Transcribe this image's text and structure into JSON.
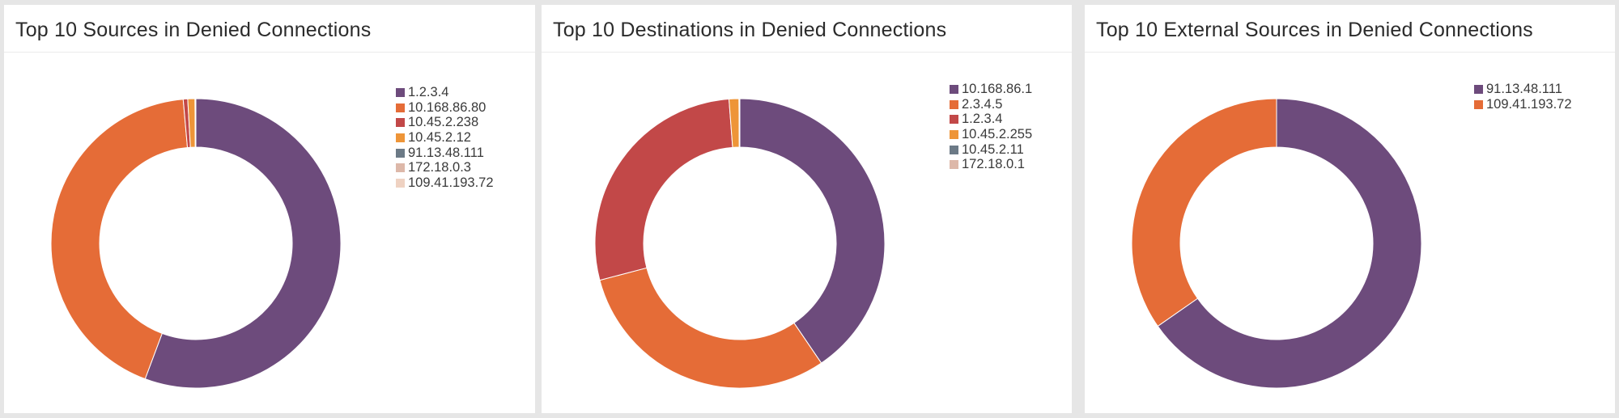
{
  "panels": [
    {
      "title": "Top 10 Sources in Denied Connections",
      "chart_data": {
        "type": "pie",
        "subtype": "donut",
        "title": "Top 10 Sources in Denied Connections",
        "categories": [
          "1.2.3.4",
          "10.168.86.80",
          "10.45.2.238",
          "10.45.2.12",
          "91.13.48.111",
          "172.18.0.3",
          "109.41.193.72"
        ],
        "values": [
          55.7,
          42.9,
          0.5,
          0.8,
          0.04,
          0.03,
          0.03
        ],
        "colors": [
          "#6d4b7c",
          "#e56c37",
          "#c24848",
          "#ee9538",
          "#6c7a86",
          "#ddb8a9",
          "#efd2c2"
        ],
        "legend": "top-right"
      }
    },
    {
      "title": "Top 10 Destinations in Denied Connections",
      "chart_data": {
        "type": "pie",
        "subtype": "donut",
        "title": "Top 10 Destinations in Denied Connections",
        "categories": [
          "10.168.86.1",
          "2.3.4.5",
          "1.2.3.4",
          "10.45.2.255",
          "10.45.2.11",
          "172.18.0.1"
        ],
        "values": [
          40.5,
          30.4,
          27.9,
          1.1,
          0.06,
          0.04
        ],
        "colors": [
          "#6d4b7c",
          "#e56c37",
          "#c24848",
          "#ee9538",
          "#6c7a86",
          "#ddb8a9"
        ],
        "legend": "top-right"
      }
    },
    {
      "title": "Top 10 External Sources in Denied Connections",
      "chart_data": {
        "type": "pie",
        "subtype": "donut",
        "title": "Top 10 External Sources in Denied Connections",
        "categories": [
          "91.13.48.111",
          "109.41.193.72"
        ],
        "values": [
          65.3,
          34.7
        ],
        "colors": [
          "#6d4b7c",
          "#e56c37"
        ],
        "legend": "top-right"
      }
    }
  ]
}
